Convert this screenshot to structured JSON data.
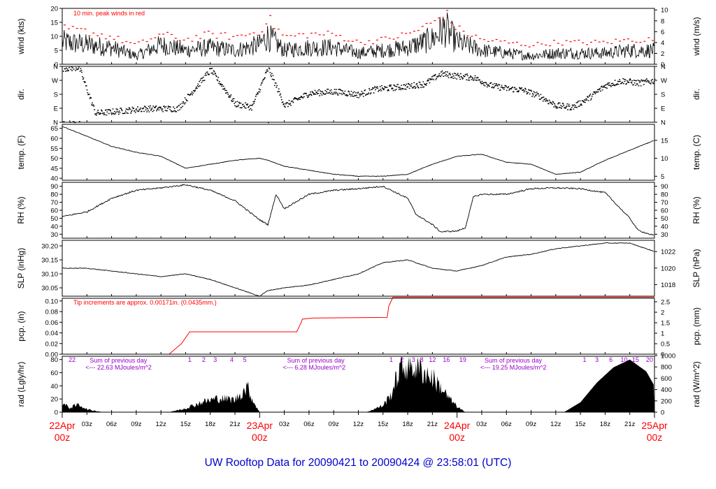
{
  "title": "UW Rooftop Data for 20090421  to  20090424 @ 23:58:01  (UTC)",
  "colors": {
    "primary": "#000000",
    "peak": "#ff0000",
    "precip": "#ff0000",
    "accent_purple": "#9900cc",
    "title": "#0000cc",
    "date": "#ff0000"
  },
  "x_axis": {
    "hour_ticks": [
      {
        "label": "03z",
        "hours": 3
      },
      {
        "label": "06z",
        "hours": 6
      },
      {
        "label": "09z",
        "hours": 9
      },
      {
        "label": "12z",
        "hours": 12
      },
      {
        "label": "15z",
        "hours": 15
      },
      {
        "label": "18z",
        "hours": 18
      },
      {
        "label": "21z",
        "hours": 21
      },
      {
        "label": "03z",
        "hours": 27
      },
      {
        "label": "06z",
        "hours": 30
      },
      {
        "label": "09z",
        "hours": 33
      },
      {
        "label": "12z",
        "hours": 36
      },
      {
        "label": "15z",
        "hours": 39
      },
      {
        "label": "18z",
        "hours": 42
      },
      {
        "label": "21z",
        "hours": 45
      },
      {
        "label": "03z",
        "hours": 51
      },
      {
        "label": "06z",
        "hours": 54
      },
      {
        "label": "09z",
        "hours": 57
      },
      {
        "label": "12z",
        "hours": 60
      },
      {
        "label": "15z",
        "hours": 63
      },
      {
        "label": "18z",
        "hours": 66
      },
      {
        "label": "21z",
        "hours": 69
      }
    ],
    "date_labels": [
      {
        "date": "22Apr",
        "time": "00z",
        "hours": 0
      },
      {
        "date": "23Apr",
        "time": "00z",
        "hours": 24
      },
      {
        "date": "24Apr",
        "time": "00z",
        "hours": 48
      },
      {
        "date": "25Apr",
        "time": "00z",
        "hours": 72
      }
    ]
  },
  "panels": {
    "wind": {
      "ylabel": "wind (kts)",
      "y2label": "wind (m/s)",
      "note": "10 min. peak winds in red",
      "yticks": [
        "0",
        "5",
        "10",
        "15",
        "20"
      ],
      "y2ticks": [
        "0",
        "2",
        "4",
        "6",
        "8",
        "10"
      ]
    },
    "dir": {
      "ylabel": "dir.",
      "y2label": "dir.",
      "yticks": [
        "N",
        "E",
        "S",
        "W",
        "N"
      ],
      "y2ticks": [
        "N",
        "E",
        "S",
        "W",
        "N"
      ]
    },
    "temp": {
      "ylabel": "temp. (F)",
      "y2label": "temp. (C)",
      "yticks": [
        "40",
        "45",
        "50",
        "55",
        "60",
        "65"
      ],
      "y2ticks": [
        "5",
        "10",
        "15"
      ]
    },
    "rh": {
      "ylabel": "RH (%)",
      "y2label": "RH (%)",
      "yticks": [
        "30",
        "40",
        "50",
        "60",
        "70",
        "80",
        "90"
      ],
      "y2ticks": [
        "30",
        "40",
        "50",
        "60",
        "70",
        "80",
        "90"
      ]
    },
    "slp": {
      "ylabel": "SLP (inHg)",
      "y2label": "SLP (hPa)",
      "yticks": [
        "30.05",
        "30.10",
        "30.15",
        "30.20"
      ],
      "y2ticks": [
        "1018",
        "1020",
        "1022"
      ]
    },
    "pcp": {
      "ylabel": "pcp. (in)",
      "y2label": "pcp. (mm)",
      "note": "Tip increments are approx. 0.00171in. (0.0435mm.)",
      "yticks": [
        "0.00",
        "0.02",
        "0.04",
        "0.06",
        "0.08",
        "0.10"
      ],
      "y2ticks": [
        "0",
        "0.5",
        "1",
        "1.5",
        "2",
        "2.5"
      ]
    },
    "rad": {
      "ylabel": "rad (Lgly/hr)",
      "y2label": "rad (W/m^2)",
      "yticks": [
        "0",
        "20",
        "40",
        "60",
        "80"
      ],
      "y2ticks": [
        "0",
        "200",
        "400",
        "600",
        "800",
        "1000"
      ],
      "sum_title": "Sum of previous day",
      "sums": [
        {
          "title": "Sum of previous day",
          "value": "<--- 22.63 MJoules/m^2",
          "hours": 3
        },
        {
          "title": "Sum of previous day",
          "value": "<--- 6.28 MJoules/m^2",
          "hours": 27
        },
        {
          "title": "Sum of previous day",
          "value": "<--- 19.25 MJoules/m^2",
          "hours": 51
        }
      ],
      "top_numbers": [
        {
          "t": "22",
          "hours": 1.2
        },
        {
          "t": "1",
          "hours": 15.5
        },
        {
          "t": "2",
          "hours": 17.2
        },
        {
          "t": "3",
          "hours": 18.6
        },
        {
          "t": "4",
          "hours": 20.6
        },
        {
          "t": "5",
          "hours": 22.2
        },
        {
          "t": "1",
          "hours": 40.0
        },
        {
          "t": "2",
          "hours": 41.3
        },
        {
          "t": "3",
          "hours": 42.7
        },
        {
          "t": "8",
          "hours": 43.7
        },
        {
          "t": "12",
          "hours": 45.0
        },
        {
          "t": "16",
          "hours": 46.7
        },
        {
          "t": "19",
          "hours": 48.7
        },
        {
          "t": "1",
          "hours": 63.5
        },
        {
          "t": "3",
          "hours": 65.0
        },
        {
          "t": "6",
          "hours": 66.7
        },
        {
          "t": "10",
          "hours": 68.3
        },
        {
          "t": "15",
          "hours": 69.7
        },
        {
          "t": "20",
          "hours": 71.4
        }
      ]
    }
  },
  "chart_data": [
    {
      "type": "line",
      "panel": "wind",
      "ylabel": "wind (kts)",
      "ylim": [
        0,
        20
      ],
      "x": [
        0,
        3,
        6,
        9,
        12,
        15,
        18,
        21,
        24,
        25,
        27,
        30,
        33,
        36,
        39,
        42,
        45,
        46.5,
        48,
        51,
        54,
        57,
        60,
        63,
        66,
        69,
        72
      ],
      "series": [
        {
          "name": "wind",
          "values": [
            8,
            7,
            6,
            3,
            7,
            5,
            6,
            5,
            7,
            10,
            5,
            6,
            6,
            4,
            5,
            6,
            9,
            13,
            8,
            5,
            4,
            3,
            4,
            4,
            4,
            5,
            5
          ]
        },
        {
          "name": "10 min. peak winds",
          "values": [
            13,
            12,
            10,
            7,
            11,
            9,
            11,
            10,
            12,
            17,
            10,
            11,
            11,
            8,
            9,
            11,
            15,
            19,
            13,
            9,
            8,
            7,
            8,
            8,
            8,
            9,
            9
          ]
        }
      ]
    },
    {
      "type": "scatter",
      "panel": "dir",
      "ylabel": "dir.",
      "ylim": [
        0,
        360
      ],
      "x": [
        0,
        2,
        4,
        6,
        8,
        10,
        14,
        18,
        21,
        23,
        25,
        27,
        30,
        33,
        34,
        36,
        38,
        40,
        42,
        44,
        46,
        48,
        50,
        52,
        54,
        56,
        58,
        60,
        62,
        64,
        66,
        68,
        70,
        72
      ],
      "series": [
        {
          "name": "direction",
          "values": [
            350,
            355,
            60,
            70,
            80,
            90,
            90,
            340,
            120,
            100,
            350,
            110,
            190,
            200,
            195,
            180,
            215,
            225,
            235,
            250,
            315,
            300,
            290,
            240,
            220,
            210,
            170,
            110,
            100,
            160,
            240,
            270,
            255,
            270
          ]
        }
      ]
    },
    {
      "type": "line",
      "panel": "temp",
      "ylabel": "temp. (F)",
      "ylim": [
        39,
        67
      ],
      "x": [
        0,
        3,
        6,
        9,
        12,
        15,
        18,
        21,
        24,
        25,
        27,
        30,
        33,
        36,
        39,
        42,
        45,
        48,
        51,
        54,
        57,
        60,
        63,
        66,
        69,
        72
      ],
      "series": [
        {
          "name": "temp",
          "values": [
            66,
            61,
            56,
            53,
            51,
            45,
            47,
            49,
            50,
            49,
            46,
            44,
            42,
            41,
            41,
            42,
            47,
            51,
            52,
            48,
            47,
            42,
            43,
            49,
            54,
            59
          ]
        }
      ]
    },
    {
      "type": "line",
      "panel": "rh",
      "ylabel": "RH (%)",
      "ylim": [
        25,
        95
      ],
      "x": [
        0,
        3,
        6,
        9,
        12,
        15,
        18,
        21,
        24,
        25,
        26,
        27,
        30,
        33,
        36,
        39,
        42,
        43,
        45,
        46,
        48,
        49,
        50,
        51,
        54,
        57,
        60,
        63,
        66,
        69,
        70,
        72
      ],
      "series": [
        {
          "name": "RH",
          "values": [
            52,
            58,
            75,
            85,
            88,
            92,
            85,
            72,
            48,
            42,
            80,
            62,
            80,
            85,
            87,
            90,
            75,
            55,
            42,
            33,
            34,
            38,
            77,
            80,
            80,
            87,
            88,
            87,
            82,
            50,
            35,
            28
          ]
        }
      ]
    },
    {
      "type": "line",
      "panel": "slp",
      "ylabel": "SLP (inHg)",
      "ylim": [
        30.02,
        30.22
      ],
      "x": [
        0,
        3,
        6,
        9,
        12,
        15,
        18,
        21,
        23,
        24,
        25,
        27,
        30,
        33,
        36,
        39,
        42,
        45,
        48,
        51,
        54,
        57,
        60,
        63,
        66,
        69,
        72
      ],
      "series": [
        {
          "name": "SLP",
          "values": [
            30.12,
            30.12,
            30.11,
            30.1,
            30.09,
            30.1,
            30.08,
            30.05,
            30.03,
            30.02,
            30.04,
            30.05,
            30.06,
            30.08,
            30.1,
            30.14,
            30.15,
            30.12,
            30.11,
            30.13,
            30.16,
            30.17,
            30.19,
            30.2,
            30.21,
            30.21,
            30.18
          ]
        }
      ]
    },
    {
      "type": "line",
      "panel": "pcp",
      "ylabel": "pcp. (in)",
      "ylim": [
        0,
        0.105
      ],
      "x": [
        0,
        13,
        14.5,
        15.5,
        28.5,
        29,
        29.2,
        30.5,
        39.5,
        39.7,
        40.2,
        72
      ],
      "series": [
        {
          "name": "pcp",
          "values": [
            0.0,
            0.0,
            0.02,
            0.042,
            0.042,
            0.058,
            0.066,
            0.068,
            0.069,
            0.09,
            0.107,
            0.107
          ]
        }
      ]
    },
    {
      "type": "area",
      "panel": "rad",
      "ylabel": "rad (Lgly/hr)",
      "ylim": [
        0,
        85
      ],
      "x": [
        0,
        1,
        2,
        3,
        5,
        13,
        15,
        17,
        19,
        21,
        22.5,
        23.2,
        24,
        37,
        39,
        40,
        41,
        42,
        43,
        44,
        45,
        46,
        47,
        48,
        49,
        61,
        63,
        65,
        67,
        69,
        71,
        72
      ],
      "series": [
        {
          "name": "rad",
          "values": [
            15,
            8,
            14,
            5,
            0,
            0,
            7,
            18,
            25,
            22,
            45,
            20,
            0,
            0,
            12,
            32,
            75,
            85,
            80,
            72,
            62,
            45,
            25,
            10,
            0,
            0,
            15,
            45,
            68,
            80,
            62,
            40
          ]
        }
      ]
    }
  ]
}
